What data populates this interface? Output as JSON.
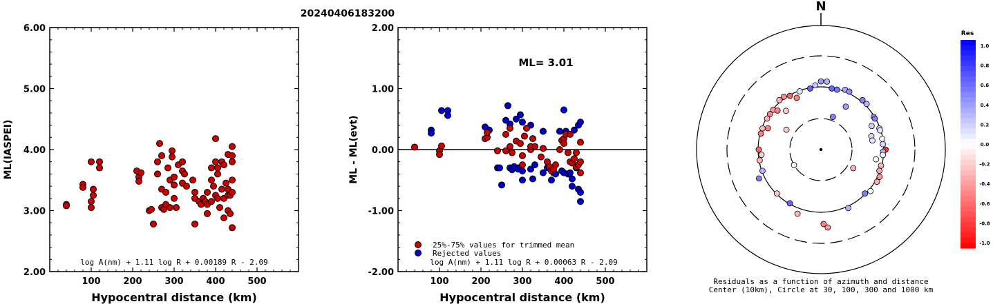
{
  "title": "20240406183200",
  "colors": {
    "accepted": "#cc0000",
    "rejected": "#0000cc",
    "stroke": "#000000"
  },
  "chart_data": [
    {
      "type": "scatter",
      "xlabel": "Hypocentral distance (km)",
      "ylabel": "ML(IASPEI)",
      "xlim": [
        0,
        600
      ],
      "ylim": [
        2.0,
        6.0
      ],
      "xticks": [
        "100",
        "200",
        "300",
        "400",
        "500"
      ],
      "yticks": [
        "2.00",
        "3.00",
        "4.00",
        "5.00",
        "6.00"
      ],
      "formula": "log A(nm) + 1.11 log R + 0.00189 R - 2.09",
      "points": [
        [
          40,
          3.1
        ],
        [
          40,
          3.08
        ],
        [
          80,
          3.43
        ],
        [
          80,
          3.38
        ],
        [
          100,
          3.8
        ],
        [
          100,
          3.15
        ],
        [
          100,
          3.05
        ],
        [
          105,
          3.35
        ],
        [
          105,
          3.25
        ],
        [
          120,
          3.8
        ],
        [
          120,
          3.7
        ],
        [
          210,
          3.65
        ],
        [
          215,
          3.55
        ],
        [
          215,
          3.48
        ],
        [
          220,
          3.62
        ],
        [
          240,
          3.0
        ],
        [
          245,
          3.02
        ],
        [
          250,
          2.78
        ],
        [
          260,
          3.8
        ],
        [
          260,
          3.6
        ],
        [
          265,
          4.1
        ],
        [
          270,
          3.9
        ],
        [
          270,
          3.35
        ],
        [
          270,
          3.05
        ],
        [
          275,
          3.02
        ],
        [
          280,
          3.3
        ],
        [
          280,
          3.1
        ],
        [
          285,
          3.7
        ],
        [
          290,
          3.5
        ],
        [
          290,
          3.05
        ],
        [
          295,
          3.98
        ],
        [
          295,
          3.88
        ],
        [
          300,
          3.55
        ],
        [
          300,
          3.42
        ],
        [
          300,
          3.2
        ],
        [
          305,
          3.05
        ],
        [
          310,
          3.75
        ],
        [
          320,
          3.8
        ],
        [
          320,
          3.65
        ],
        [
          320,
          3.45
        ],
        [
          325,
          3.6
        ],
        [
          330,
          3.4
        ],
        [
          345,
          3.5
        ],
        [
          350,
          3.3
        ],
        [
          350,
          3.2
        ],
        [
          350,
          2.78
        ],
        [
          360,
          3.15
        ],
        [
          365,
          3.1
        ],
        [
          370,
          3.2
        ],
        [
          375,
          3.15
        ],
        [
          380,
          3.3
        ],
        [
          380,
          3.1
        ],
        [
          380,
          2.95
        ],
        [
          390,
          3.7
        ],
        [
          390,
          3.5
        ],
        [
          390,
          3.15
        ],
        [
          395,
          3.4
        ],
        [
          400,
          4.18
        ],
        [
          400,
          3.8
        ],
        [
          400,
          3.25
        ],
        [
          405,
          3.7
        ],
        [
          405,
          3.6
        ],
        [
          405,
          3.2
        ],
        [
          410,
          3.05
        ],
        [
          415,
          3.8
        ],
        [
          415,
          3.35
        ],
        [
          420,
          3.75
        ],
        [
          420,
          3.2
        ],
        [
          420,
          2.88
        ],
        [
          425,
          3.45
        ],
        [
          430,
          3.92
        ],
        [
          430,
          3.35
        ],
        [
          430,
          3.25
        ],
        [
          430,
          3.0
        ],
        [
          435,
          3.25
        ],
        [
          435,
          2.95
        ],
        [
          440,
          4.05
        ],
        [
          440,
          3.9
        ],
        [
          440,
          3.8
        ],
        [
          440,
          3.5
        ],
        [
          440,
          3.3
        ],
        [
          440,
          2.72
        ]
      ]
    },
    {
      "type": "scatter",
      "xlabel": "Hypocentral distance (km)",
      "ylabel": "ML - ML(evt)",
      "xlim": [
        0,
        600
      ],
      "ylim": [
        -2.0,
        2.0
      ],
      "xticks": [
        "100",
        "200",
        "300",
        "400",
        "500"
      ],
      "yticks": [
        "-2.00",
        "-1.00",
        "0.00",
        "1.00",
        "2.00"
      ],
      "ml_label": "ML= 3.01",
      "formula": "log A(nm) + 1.11 log R + 0.00063 R - 2.09",
      "legend": [
        "25%-75% values for trimmed mean",
        "Rejected values"
      ],
      "series": [
        {
          "name": "25%-75% values for trimmed mean",
          "points": [
            [
              40,
              0.04
            ],
            [
              100,
              -0.02
            ],
            [
              100,
              -0.08
            ],
            [
              105,
              0.06
            ],
            [
              210,
              0.18
            ],
            [
              215,
              0.2
            ],
            [
              215,
              0.28
            ],
            [
              240,
              -0.02
            ],
            [
              260,
              0.25
            ],
            [
              260,
              -0.02
            ],
            [
              270,
              0.35
            ],
            [
              270,
              0.05
            ],
            [
              275,
              -0.05
            ],
            [
              285,
              0.14
            ],
            [
              295,
              0.1
            ],
            [
              300,
              -0.1
            ],
            [
              300,
              -0.25
            ],
            [
              305,
              0.22
            ],
            [
              310,
              0.35
            ],
            [
              320,
              0.0
            ],
            [
              320,
              0.05
            ],
            [
              325,
              0.18
            ],
            [
              330,
              0.05
            ],
            [
              345,
              -0.12
            ],
            [
              350,
              0.02
            ],
            [
              360,
              -0.2
            ],
            [
              365,
              -0.28
            ],
            [
              370,
              -0.35
            ],
            [
              375,
              -0.32
            ],
            [
              380,
              -0.25
            ],
            [
              390,
              0.0
            ],
            [
              395,
              0.15
            ],
            [
              400,
              0.18
            ],
            [
              400,
              0.1
            ],
            [
              405,
              0.25
            ],
            [
              410,
              -0.05
            ],
            [
              415,
              -0.2
            ],
            [
              415,
              0.25
            ],
            [
              420,
              -0.22
            ],
            [
              425,
              -0.15
            ],
            [
              430,
              -0.05
            ],
            [
              430,
              -0.28
            ],
            [
              435,
              -0.25
            ],
            [
              440,
              0.12
            ],
            [
              440,
              -0.2
            ],
            [
              440,
              -0.38
            ]
          ]
        },
        {
          "name": "Rejected values",
          "points": [
            [
              80,
              0.32
            ],
            [
              80,
              0.27
            ],
            [
              105,
              0.64
            ],
            [
              120,
              0.64
            ],
            [
              120,
              0.56
            ],
            [
              210,
              0.37
            ],
            [
              220,
              0.32
            ],
            [
              240,
              -0.3
            ],
            [
              245,
              -0.3
            ],
            [
              250,
              -0.58
            ],
            [
              260,
              0.48
            ],
            [
              265,
              0.72
            ],
            [
              270,
              0.42
            ],
            [
              270,
              -0.3
            ],
            [
              275,
              -0.33
            ],
            [
              280,
              -0.28
            ],
            [
              285,
              0.5
            ],
            [
              290,
              -0.3
            ],
            [
              290,
              -0.32
            ],
            [
              295,
              0.57
            ],
            [
              300,
              0.45
            ],
            [
              300,
              -0.5
            ],
            [
              300,
              -0.35
            ],
            [
              320,
              0.4
            ],
            [
              320,
              -0.32
            ],
            [
              325,
              -0.48
            ],
            [
              330,
              -0.25
            ],
            [
              350,
              0.3
            ],
            [
              350,
              -0.38
            ],
            [
              360,
              -0.3
            ],
            [
              370,
              -0.5
            ],
            [
              375,
              -0.38
            ],
            [
              380,
              -0.4
            ],
            [
              390,
              0.3
            ],
            [
              395,
              -0.35
            ],
            [
              400,
              0.65
            ],
            [
              400,
              -0.38
            ],
            [
              405,
              0.3
            ],
            [
              410,
              -0.4
            ],
            [
              415,
              -0.38
            ],
            [
              420,
              -0.6
            ],
            [
              420,
              -0.48
            ],
            [
              425,
              0.32
            ],
            [
              430,
              -0.3
            ],
            [
              435,
              -0.65
            ],
            [
              435,
              0.4
            ],
            [
              440,
              0.45
            ],
            [
              440,
              -0.7
            ],
            [
              440,
              -0.85
            ]
          ]
        }
      ]
    },
    {
      "type": "scatter",
      "north_label": "N",
      "colorbar_title": "Res",
      "colorbar_ticks": [
        "1.0",
        "0.8",
        "0.6",
        "0.4",
        "0.2",
        "0.0",
        "-0.2",
        "-0.4",
        "-0.6",
        "-0.8",
        "-1.0"
      ],
      "caption_line1": "Residuals as a function of azimuth and distance",
      "caption_line2": "Center (10km), Circle at 30, 100, 300 and 1000 km",
      "points_polar": [
        [
          10,
          0.5,
          0.6
        ],
        [
          15,
          0.5,
          0.55
        ],
        [
          22,
          0.52,
          0.35
        ],
        [
          26,
          0.52,
          0.45
        ],
        [
          40,
          0.52,
          0.5
        ],
        [
          45,
          0.52,
          0.3
        ],
        [
          58,
          0.5,
          0.4
        ],
        [
          60,
          0.5,
          0.5
        ],
        [
          70,
          0.5,
          0.2
        ],
        [
          72,
          0.5,
          0.1
        ],
        [
          80,
          0.5,
          0.0
        ],
        [
          85,
          0.5,
          0.15
        ],
        [
          90,
          0.52,
          -0.8
        ],
        [
          92,
          0.5,
          0.3
        ],
        [
          95,
          0.5,
          0.05
        ],
        [
          105,
          0.5,
          -0.3
        ],
        [
          110,
          0.5,
          -0.35
        ],
        [
          115,
          0.52,
          -0.4
        ],
        [
          120,
          0.52,
          -0.3
        ],
        [
          130,
          0.52,
          0.0
        ],
        [
          135,
          0.5,
          0.5
        ],
        [
          155,
          0.52,
          0.3
        ],
        [
          175,
          0.63,
          -0.4
        ],
        [
          178,
          0.6,
          -0.5
        ],
        [
          200,
          0.55,
          -0.3
        ],
        [
          210,
          0.5,
          0.6
        ],
        [
          225,
          0.5,
          -0.2
        ],
        [
          245,
          0.55,
          0.5
        ],
        [
          250,
          0.5,
          0.3
        ],
        [
          260,
          0.5,
          -0.3
        ],
        [
          270,
          0.5,
          -0.6
        ],
        [
          285,
          0.5,
          -0.5
        ],
        [
          290,
          0.5,
          -0.3
        ],
        [
          300,
          0.5,
          -0.3
        ],
        [
          305,
          0.5,
          -0.5
        ],
        [
          310,
          0.5,
          -0.4
        ],
        [
          320,
          0.52,
          -0.3
        ],
        [
          325,
          0.52,
          -0.45
        ],
        [
          330,
          0.5,
          -0.6
        ],
        [
          340,
          0.5,
          0.1
        ],
        [
          350,
          0.5,
          0.6
        ],
        [
          355,
          0.52,
          0.2
        ],
        [
          0,
          0.55,
          0.4
        ],
        [
          5,
          0.55,
          0.3
        ],
        [
          20,
          0.28,
          0.5
        ],
        [
          120,
          0.3,
          -0.3
        ],
        [
          100,
          0.45,
          0.0
        ],
        [
          240,
          0.25,
          0.05
        ],
        [
          300,
          0.32,
          -0.2
        ],
        [
          265,
          0.48,
          -0.2
        ],
        [
          292,
          0.46,
          -0.5
        ],
        [
          312,
          0.47,
          -0.5
        ],
        [
          318,
          0.42,
          -0.2
        ],
        [
          335,
          0.46,
          -0.5
        ],
        [
          30,
          0.4,
          0.4
        ],
        [
          65,
          0.45,
          0.2
        ],
        [
          75,
          0.42,
          0.15
        ],
        [
          80,
          0.42,
          0.1
        ]
      ]
    }
  ]
}
